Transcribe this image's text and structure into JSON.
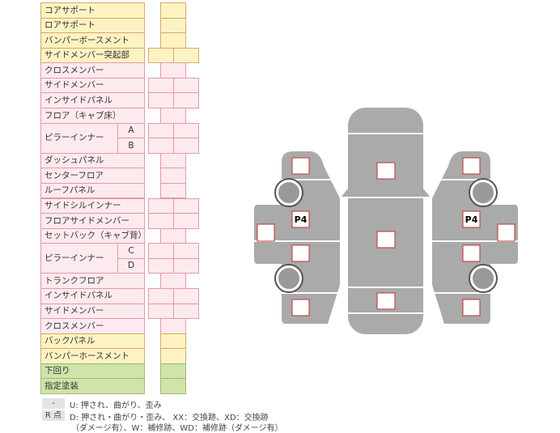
{
  "table": {
    "rows": [
      {
        "label": "コアサポート"
      },
      {
        "label": "ロアサポート"
      },
      {
        "label": "バンパーボースメント"
      },
      {
        "label": "サイドメンバー突起部"
      },
      {
        "label": "クロスメンバー"
      },
      {
        "label": "サイドメンバー"
      },
      {
        "label": "インサイドパネル"
      },
      {
        "label": "フロア（キャブ床）"
      },
      {
        "label": "ピラーインナー",
        "sub": [
          "A",
          "B"
        ]
      },
      {
        "label": "ダッシュパネル"
      },
      {
        "label": "センターフロア"
      },
      {
        "label": "ルーフパネル"
      },
      {
        "label": "サイドシルインナー"
      },
      {
        "label": "フロアサイドメンバー"
      },
      {
        "label": "セットバック（キャブ背）"
      },
      {
        "label": "ピラーインナー",
        "sub": [
          "C",
          "D"
        ]
      },
      {
        "label": "トランクフロア"
      },
      {
        "label": "インサイドパネル"
      },
      {
        "label": "サイドメンバー"
      },
      {
        "label": "クロスメンバー"
      },
      {
        "label": "バックパネル"
      },
      {
        "label": "バンパーホースメント"
      },
      {
        "label": "下回り"
      },
      {
        "label": "指定塗装"
      }
    ]
  },
  "legend": [
    {
      "key": "-",
      "lines": [
        "U: 押され、曲がり、歪み"
      ]
    },
    {
      "key": "R 点",
      "lines": [
        "D: 押され・曲がり・歪み、 XX：交換跡、XD：交換跡",
        "（ダメージ有）、W：補修跡、WD：補修跡（ダメージ有）"
      ]
    }
  ],
  "diagram": {
    "labels": [
      "P4",
      "P4"
    ]
  }
}
